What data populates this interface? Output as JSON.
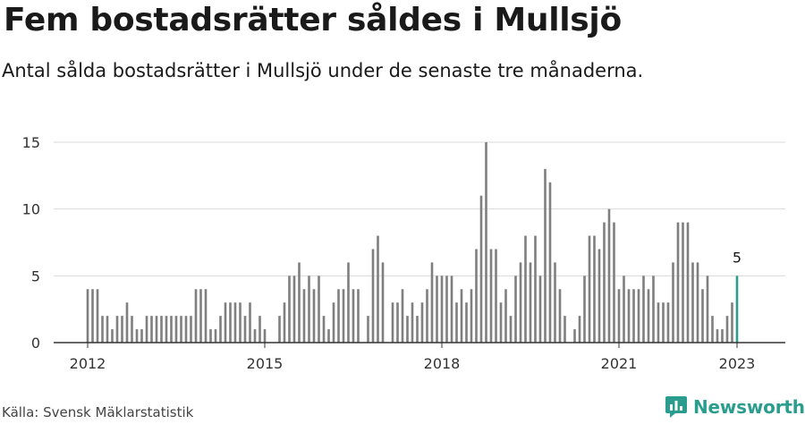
{
  "title": "Fem bostadsrätter såldes i Mullsjö",
  "subtitle": "Antal sålda bostadsrätter i Mullsjö under de senaste tre månaderna.",
  "source": "Källa: Svensk Mäklarstatistik",
  "brand": "Newsworthy",
  "colors": {
    "bar": "#7f7f7f",
    "highlight": "#2a9d8f",
    "grid": "#d9d9d9",
    "axis": "#333333"
  },
  "chart_data": {
    "type": "bar",
    "x_start": "2012-01",
    "ylim": [
      0,
      15
    ],
    "yticks": [
      0,
      5,
      10,
      15
    ],
    "xticks": [
      "2012",
      "2015",
      "2018",
      "2021",
      "2023"
    ],
    "highlight_label": "5",
    "values": [
      4,
      4,
      4,
      2,
      2,
      1,
      2,
      2,
      3,
      2,
      1,
      1,
      2,
      2,
      2,
      2,
      2,
      2,
      2,
      2,
      2,
      2,
      4,
      4,
      4,
      1,
      1,
      2,
      3,
      3,
      3,
      3,
      2,
      3,
      1,
      2,
      1,
      0,
      0,
      2,
      3,
      5,
      5,
      6,
      4,
      5,
      4,
      5,
      2,
      1,
      3,
      4,
      4,
      6,
      4,
      4,
      0,
      2,
      7,
      8,
      6,
      0,
      3,
      3,
      4,
      2,
      3,
      2,
      3,
      4,
      6,
      5,
      5,
      5,
      5,
      3,
      4,
      3,
      4,
      7,
      11,
      15,
      7,
      7,
      3,
      4,
      2,
      5,
      6,
      8,
      6,
      8,
      5,
      13,
      12,
      6,
      4,
      2,
      0,
      1,
      2,
      5,
      8,
      8,
      7,
      9,
      10,
      9,
      4,
      5,
      4,
      4,
      4,
      5,
      4,
      5,
      3,
      3,
      3,
      6,
      9,
      9,
      9,
      6,
      6,
      4,
      5,
      2,
      1,
      1,
      2,
      3,
      5
    ]
  }
}
